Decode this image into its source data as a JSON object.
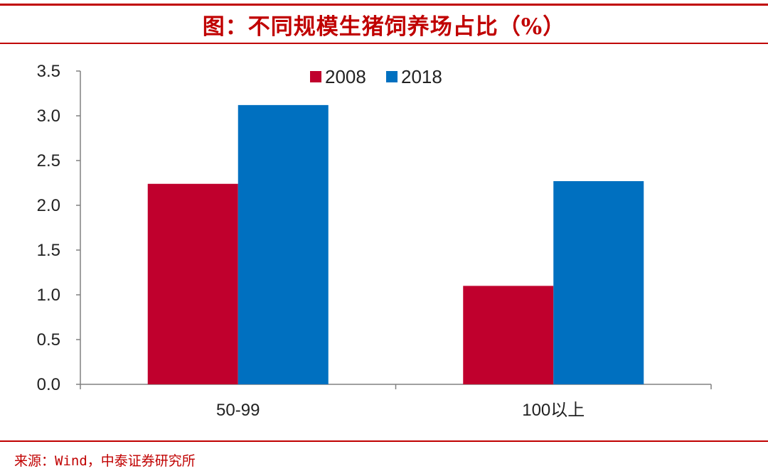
{
  "header": {
    "title": "图：不同规模生猪饲养场占比（%）"
  },
  "footer": {
    "source": "来源：Wind，中泰证券研究所"
  },
  "colors": {
    "accent": "#c00000",
    "series_2008": "#c0002d",
    "series_2018": "#0070c0"
  },
  "chart_data": {
    "type": "bar",
    "categories": [
      "50-99",
      "100以上"
    ],
    "series": [
      {
        "name": "2008",
        "values": [
          2.24,
          1.1
        ]
      },
      {
        "name": "2018",
        "values": [
          3.12,
          2.27
        ]
      }
    ],
    "ylim": [
      0,
      3.5
    ],
    "yticks": [
      "0.0",
      "0.5",
      "1.0",
      "1.5",
      "2.0",
      "2.5",
      "3.0",
      "3.5"
    ],
    "legend_position": "top-center",
    "grid": false
  }
}
